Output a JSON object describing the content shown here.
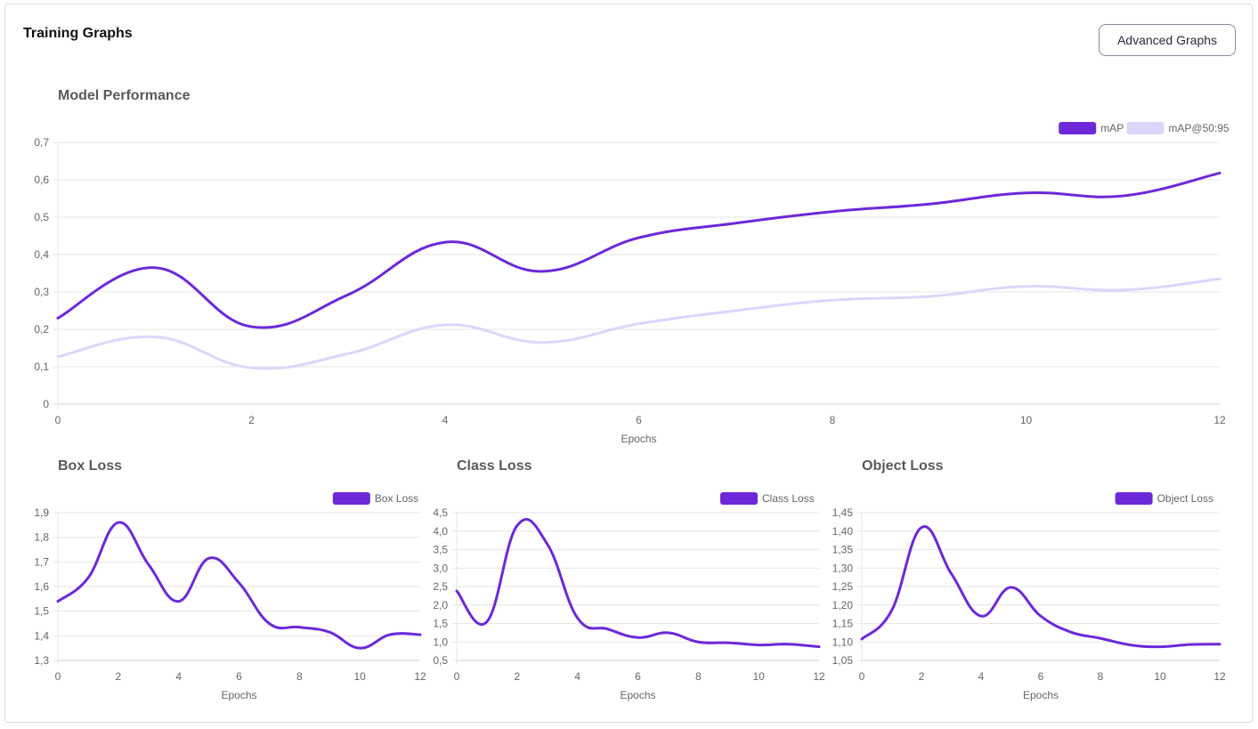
{
  "header": {
    "title": "Training Graphs",
    "advanced_button_label": "Advanced Graphs"
  },
  "colors": {
    "primary": "#6d28d9",
    "secondary": "#dcd6fb",
    "grid": "#e6e6e6",
    "axis": "#666666"
  },
  "chart_data": [
    {
      "id": "performance",
      "type": "line",
      "title": "Model Performance",
      "xlabel": "Epochs",
      "ylabel": "",
      "x": [
        0,
        1,
        2,
        3,
        4,
        5,
        6,
        7,
        8,
        9,
        10,
        11,
        12
      ],
      "xticks": [
        "0",
        "2",
        "4",
        "6",
        "8",
        "10",
        "12"
      ],
      "ylim": [
        0,
        0.7
      ],
      "yticks": [
        "0",
        "0,1",
        "0,2",
        "0,3",
        "0,4",
        "0,5",
        "0,6",
        "0,7"
      ],
      "legend": "top-right",
      "grid": true,
      "series": [
        {
          "name": "mAP",
          "color": "#6d28d9",
          "values": [
            0.23,
            0.365,
            0.207,
            0.293,
            0.433,
            0.355,
            0.445,
            0.484,
            0.515,
            0.535,
            0.565,
            0.557,
            0.618
          ]
        },
        {
          "name": "mAP@50:95",
          "color": "#dcd6fb",
          "values": [
            0.127,
            0.18,
            0.097,
            0.135,
            0.212,
            0.165,
            0.215,
            0.25,
            0.278,
            0.288,
            0.315,
            0.305,
            0.335
          ]
        }
      ]
    },
    {
      "id": "box",
      "type": "line",
      "title": "Box Loss",
      "xlabel": "Epochs",
      "ylabel": "",
      "x": [
        0,
        1,
        2,
        3,
        4,
        5,
        6,
        7,
        8,
        9,
        10,
        11,
        12
      ],
      "xticks": [
        "0",
        "2",
        "4",
        "6",
        "8",
        "10",
        "12"
      ],
      "ylim": [
        1.3,
        1.9
      ],
      "yticks": [
        "1,3",
        "1,4",
        "1,5",
        "1,6",
        "1,7",
        "1,8",
        "1,9"
      ],
      "legend": "top-right",
      "grid": true,
      "series": [
        {
          "name": "Box Loss",
          "color": "#6d28d9",
          "values": [
            1.54,
            1.635,
            1.86,
            1.69,
            1.54,
            1.715,
            1.615,
            1.45,
            1.435,
            1.415,
            1.35,
            1.405,
            1.405
          ]
        }
      ]
    },
    {
      "id": "class",
      "type": "line",
      "title": "Class Loss",
      "xlabel": "Epochs",
      "ylabel": "",
      "x": [
        0,
        1,
        2,
        3,
        4,
        5,
        6,
        7,
        8,
        9,
        10,
        11,
        12
      ],
      "xticks": [
        "0",
        "2",
        "4",
        "6",
        "8",
        "10",
        "12"
      ],
      "ylim": [
        0.5,
        4.5
      ],
      "yticks": [
        "0,5",
        "1,0",
        "1,5",
        "2,0",
        "2,5",
        "3,0",
        "3,5",
        "4,0",
        "4,5"
      ],
      "legend": "top-right",
      "grid": true,
      "series": [
        {
          "name": "Class Loss",
          "color": "#6d28d9",
          "values": [
            2.38,
            1.55,
            4.15,
            3.65,
            1.65,
            1.35,
            1.12,
            1.25,
            1.0,
            0.98,
            0.92,
            0.94,
            0.87
          ]
        }
      ]
    },
    {
      "id": "object",
      "type": "line",
      "title": "Object Loss",
      "xlabel": "Epochs",
      "ylabel": "",
      "x": [
        0,
        1,
        2,
        3,
        4,
        5,
        6,
        7,
        8,
        9,
        10,
        11,
        12
      ],
      "xticks": [
        "0",
        "2",
        "4",
        "6",
        "8",
        "10",
        "12"
      ],
      "ylim": [
        1.05,
        1.45
      ],
      "yticks": [
        "1,05",
        "1,10",
        "1,15",
        "1,20",
        "1,25",
        "1,30",
        "1,35",
        "1,40",
        "1,45"
      ],
      "legend": "top-right",
      "grid": true,
      "series": [
        {
          "name": "Object Loss",
          "color": "#6d28d9",
          "values": [
            1.108,
            1.185,
            1.41,
            1.285,
            1.17,
            1.248,
            1.17,
            1.127,
            1.11,
            1.092,
            1.087,
            1.093,
            1.094
          ]
        }
      ]
    }
  ]
}
